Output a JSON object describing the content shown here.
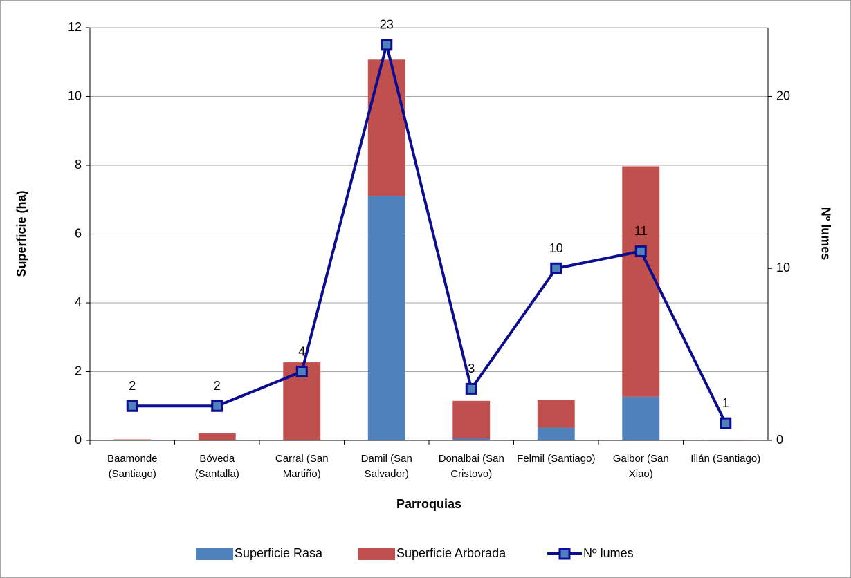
{
  "chart_data": {
    "type": "bar",
    "stacked": true,
    "x_label": "Parroquias",
    "y_label": "Superficie (ha)",
    "y2_label": "Nº lumes",
    "categories": [
      "Baamonde (Santiago)",
      "Bóveda (Santalla)",
      "Carral (San Martiño)",
      "Damil (San Salvador)",
      "Donalbai (San Cristovo)",
      "Felmil (Santiago)",
      "Gaibor (San Xiao)",
      "Illán (Santiago)"
    ],
    "series": [
      {
        "name": "Superficie Rasa",
        "color": "#4f81bd",
        "values": [
          0.01,
          0,
          0,
          7.1,
          0.05,
          0.37,
          1.27,
          0.01
        ]
      },
      {
        "name": "Superficie Arborada",
        "color": "#c0504d",
        "values": [
          0.02,
          0.2,
          2.27,
          3.97,
          1.1,
          0.8,
          6.7,
          0.01
        ]
      },
      {
        "name": "Nº lumes",
        "color": "#0d0d8f",
        "type": "line",
        "axis": "y2",
        "values": [
          2,
          2,
          4,
          23,
          3,
          10,
          11,
          1
        ]
      }
    ],
    "ylim": [
      0,
      12
    ],
    "yticks": [
      0,
      2,
      4,
      6,
      8,
      10,
      12
    ],
    "y2lim": [
      0,
      24
    ],
    "y2ticks": [
      0,
      10,
      20
    ],
    "grid": true,
    "legend": "bottom"
  }
}
